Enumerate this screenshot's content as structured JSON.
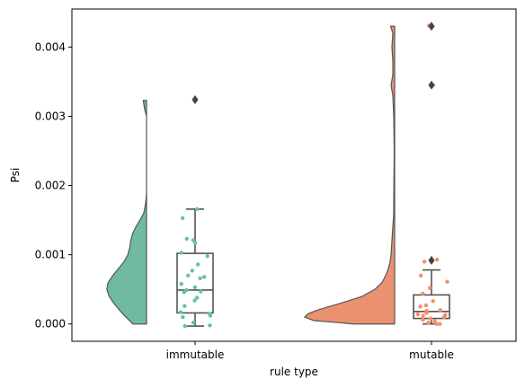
{
  "chart_data": {
    "type": "raincloud",
    "xlabel": "rule type",
    "ylabel": "Psi",
    "categories": [
      "immutable",
      "mutable"
    ],
    "ylim": [
      -0.00025,
      0.00455
    ],
    "yticks": [
      0.0,
      0.001,
      0.002,
      0.003,
      0.004
    ],
    "ytick_labels": [
      "0.000",
      "0.001",
      "0.002",
      "0.003",
      "0.004"
    ],
    "grid": false,
    "legend": "none",
    "colors": {
      "immutable": "#66c2a5",
      "mutable": "#fc8d62",
      "box": "#555555"
    },
    "series": [
      {
        "category": "immutable",
        "violin_profile": [
          [
            0.0,
            0.29
          ],
          [
            0.0001,
            0.44
          ],
          [
            0.0002,
            0.58
          ],
          [
            0.0003,
            0.7
          ],
          [
            0.0004,
            0.8
          ],
          [
            0.0005,
            0.85
          ],
          [
            0.0006,
            0.82
          ],
          [
            0.0007,
            0.72
          ],
          [
            0.0008,
            0.6
          ],
          [
            0.0009,
            0.48
          ],
          [
            0.001,
            0.4
          ],
          [
            0.0011,
            0.36
          ],
          [
            0.0012,
            0.34
          ],
          [
            0.0013,
            0.3
          ],
          [
            0.0014,
            0.23
          ],
          [
            0.0015,
            0.14
          ],
          [
            0.0016,
            0.06
          ],
          [
            0.0017,
            0.03
          ],
          [
            0.0018,
            0.01
          ],
          [
            0.0019,
            0.0
          ],
          [
            0.002,
            0.0
          ],
          [
            0.0022,
            0.0
          ],
          [
            0.0025,
            0.0
          ],
          [
            0.0028,
            0.0
          ],
          [
            0.003,
            0.0
          ],
          [
            0.0031,
            0.04
          ],
          [
            0.00323,
            0.07
          ]
        ],
        "box": {
          "whisker_low": -3e-05,
          "q1": 0.00016,
          "median": 0.00049,
          "q3": 0.00102,
          "whisker_high": 0.00166
        },
        "outliers": [
          0.00324
        ],
        "points": [
          0.00325,
          0.00166,
          0.00153,
          0.00123,
          0.00121,
          0.00117,
          0.00103,
          0.00098,
          0.00086,
          0.00077,
          0.0007,
          0.00068,
          0.00066,
          0.00058,
          0.00053,
          0.00049,
          0.00047,
          0.00046,
          0.00038,
          0.00034,
          0.00026,
          0.00017,
          0.00015,
          0.00012,
          0.0001,
          2e-05,
          -2e-05,
          -3e-05
        ]
      },
      {
        "category": "mutable",
        "violin_profile": [
          [
            0.0,
            0.45
          ],
          [
            5e-05,
            0.9
          ],
          [
            0.0001,
            1.0
          ],
          [
            0.00015,
            0.96
          ],
          [
            0.0002,
            0.86
          ],
          [
            0.0003,
            0.6
          ],
          [
            0.0004,
            0.36
          ],
          [
            0.0005,
            0.22
          ],
          [
            0.0006,
            0.14
          ],
          [
            0.0007,
            0.1
          ],
          [
            0.0008,
            0.07
          ],
          [
            0.0009,
            0.05
          ],
          [
            0.001,
            0.04
          ],
          [
            0.0012,
            0.03
          ],
          [
            0.0014,
            0.02
          ],
          [
            0.0016,
            0.01
          ],
          [
            0.0018,
            0.01
          ],
          [
            0.0025,
            0.005
          ],
          [
            0.003,
            0.01
          ],
          [
            0.0033,
            0.02
          ],
          [
            0.00345,
            0.04
          ],
          [
            0.0036,
            0.02
          ],
          [
            0.0038,
            0.02
          ],
          [
            0.004,
            0.03
          ],
          [
            0.0042,
            0.02
          ],
          [
            0.0043,
            0.045
          ]
        ],
        "box": {
          "whisker_low": 0.0,
          "q1": 8e-05,
          "median": 0.00018,
          "q3": 0.00042,
          "whisker_high": 0.00078
        },
        "outliers": [
          0.00092,
          0.00345,
          0.0043
        ],
        "points": [
          0.00431,
          0.00345,
          0.00093,
          0.0009,
          0.0007,
          0.00061,
          0.00052,
          0.00044,
          0.00033,
          0.00027,
          0.00025,
          0.0002,
          0.00019,
          0.00016,
          0.00014,
          0.00013,
          0.00012,
          0.0001,
          8e-05,
          6e-05,
          4e-05,
          2e-05,
          0.0,
          0.0
        ]
      }
    ]
  }
}
